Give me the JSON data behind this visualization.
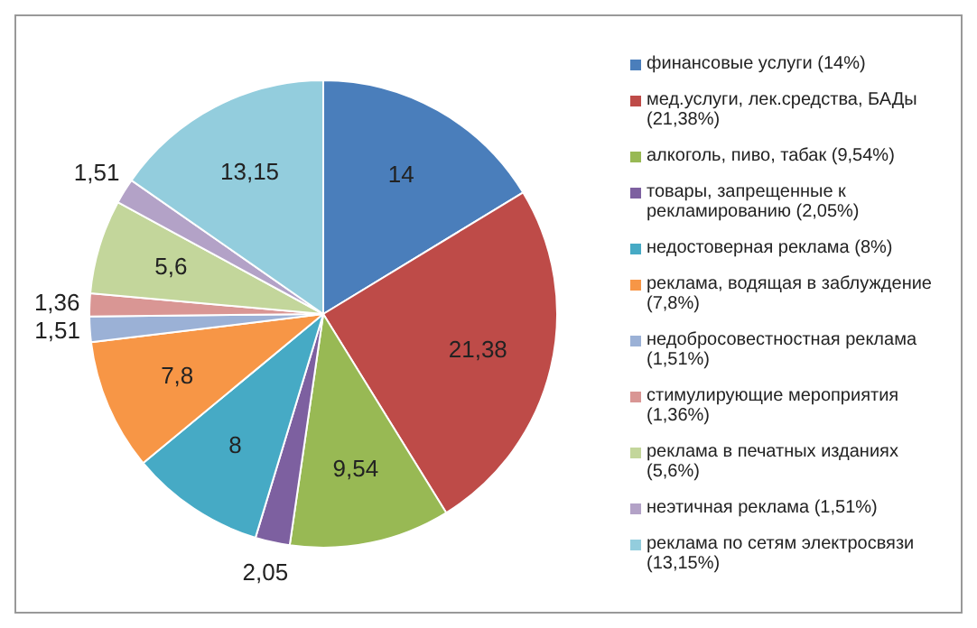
{
  "chart_data": {
    "type": "pie",
    "categories": [
      "финансовые услуги (14%)",
      "мед.услуги, лек.средства, БАДы (21,38%)",
      "алкоголь, пиво, табак (9,54%)",
      "товары, запрещенные к рекламированию (2,05%)",
      "недостоверная реклама (8%)",
      "реклама, водящая в заблуждение (7,8%)",
      "недобросовестностная реклама (1,51%)",
      "стимулирующие мероприятия (1,36%)",
      "реклама в печатных изданиях (5,6%)",
      "неэтичная реклама (1,51%)",
      "реклама по сетям электросвязи (13,15%)"
    ],
    "values": [
      14,
      21.38,
      9.54,
      2.05,
      8,
      7.8,
      1.51,
      1.36,
      5.6,
      1.51,
      13.15
    ],
    "value_labels": [
      "14",
      "21,38",
      "9,54",
      "2,05",
      "8",
      "7,8",
      "1,51",
      "1,36",
      "5,6",
      "1,51",
      "13,15"
    ],
    "colors": [
      "#4a7ebb",
      "#be4b48",
      "#98b954",
      "#7d60a0",
      "#46aac5",
      "#f79646",
      "#9bb1d6",
      "#d99694",
      "#c3d69b",
      "#b3a2c7",
      "#93cddd"
    ],
    "legend": "right"
  }
}
